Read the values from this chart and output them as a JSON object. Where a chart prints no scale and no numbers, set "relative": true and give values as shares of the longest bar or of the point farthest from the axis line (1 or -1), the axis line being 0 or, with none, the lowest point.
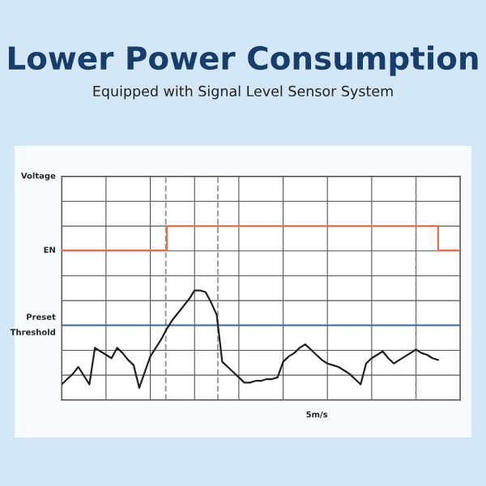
{
  "chart_data": {
    "type": "line",
    "title": "Lower Power Consumption",
    "subtitle": "Equipped with Signal Level Sensor System",
    "xlabel": "5m/s",
    "relative": true,
    "grid": true,
    "marker": "none",
    "categories": [
      null,
      null,
      null,
      null,
      null,
      null,
      null,
      null,
      null,
      null,
      null,
      null,
      null,
      null,
      null,
      null,
      null,
      null,
      null,
      null,
      null,
      null,
      null,
      null,
      null,
      null,
      null,
      null,
      null,
      null,
      null,
      null,
      null,
      null,
      null,
      null,
      null,
      null,
      null,
      null,
      null,
      null,
      null,
      null,
      null,
      null,
      null,
      null,
      null,
      null,
      null,
      null,
      null,
      null,
      null,
      null,
      null,
      null,
      null,
      null,
      null,
      null,
      null,
      null,
      null,
      null,
      null,
      null,
      null,
      null,
      null,
      null,
      null
    ],
    "series": [
      {
        "type": "step",
        "color": "#e8704f",
        "values": [
          0.86,
          0.86,
          0.86,
          0.86,
          0.86,
          0.86,
          0.86,
          0.86,
          0.86,
          0.86,
          0.86,
          0.86,
          0.86,
          0.86,
          0.86,
          0.86,
          0.86,
          0.86,
          0.86,
          1,
          1,
          1,
          1,
          1,
          1,
          1,
          1,
          1,
          1,
          1,
          1,
          1,
          1,
          1,
          1,
          1,
          1,
          1,
          1,
          1,
          1,
          1,
          1,
          1,
          1,
          1,
          1,
          1,
          1,
          1,
          1,
          1,
          1,
          1,
          1,
          1,
          1,
          1,
          1,
          1,
          1,
          1,
          1,
          1,
          1,
          1,
          1,
          1,
          0.86,
          0.86,
          0.86,
          0.86,
          0.86
        ]
      },
      {
        "color": "#222222",
        "values": [
          0.09,
          0.12,
          0.15,
          0.19,
          0.14,
          0.09,
          0.3,
          0.28,
          0.26,
          0.24,
          0.3,
          0.27,
          0.23,
          0.2,
          0.07,
          0.16,
          0.25,
          0.3,
          0.35,
          0.41,
          0.46,
          0.5,
          0.54,
          0.58,
          0.63,
          0.63,
          0.62,
          0.56,
          0.49,
          0.22,
          0.19,
          0.16,
          0.13,
          0.1,
          0.1,
          0.11,
          0.11,
          0.12,
          0.12,
          0.13,
          0.22,
          0.25,
          0.27,
          0.3,
          0.32,
          0.29,
          0.26,
          0.23,
          0.21,
          0.2,
          0.19,
          0.17,
          0.15,
          0.12,
          0.09,
          0.21,
          0.24,
          0.26,
          0.28,
          0.24,
          0.21,
          0.23,
          0.25,
          0.27,
          0.29,
          0.27,
          0.26,
          0.24,
          0.23,
          null,
          null,
          null,
          null
        ]
      }
    ],
    "ref_lines": [
      {
        "axis": "y",
        "value": 0.43,
        "color": "#3d6fa3",
        "line_style": "solid",
        "label": "Preset\nThreshold"
      }
    ],
    "annotations": [
      "Voltage",
      "EN"
    ]
  }
}
